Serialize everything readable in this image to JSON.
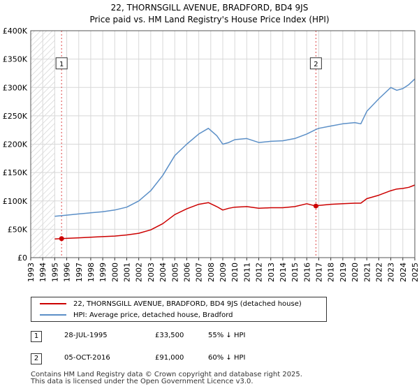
{
  "title": {
    "line1": "22, THORNSGILL AVENUE, BRADFORD, BD4 9JS",
    "line2": "Price paid vs. HM Land Registry's House Price Index (HPI)"
  },
  "colors": {
    "property": "#cc0000",
    "hpi": "#5b8fc7",
    "hatch": "#cccccc",
    "grid": "#d8d8d8",
    "marker_line": "#dd4444"
  },
  "chart_data": {
    "type": "line",
    "xlim": [
      1993,
      2025
    ],
    "ylim": [
      0,
      400000
    ],
    "y_ticks": [
      0,
      50000,
      100000,
      150000,
      200000,
      250000,
      300000,
      350000,
      400000
    ],
    "y_tick_labels": [
      "£0",
      "£50K",
      "£100K",
      "£150K",
      "£200K",
      "£250K",
      "£300K",
      "£350K",
      "£400K"
    ],
    "x_ticks": [
      1993,
      1994,
      1995,
      1996,
      1997,
      1998,
      1999,
      2000,
      2001,
      2002,
      2003,
      2004,
      2005,
      2006,
      2007,
      2008,
      2009,
      2010,
      2011,
      2012,
      2013,
      2014,
      2015,
      2016,
      2017,
      2018,
      2019,
      2020,
      2021,
      2022,
      2023,
      2024,
      2025
    ],
    "series": [
      {
        "name": "22, THORNSGILL AVENUE, BRADFORD, BD4 9JS (detached house)",
        "x": [
          1995.0,
          1995.57,
          1996,
          1997,
          1998,
          1999,
          2000,
          2001,
          2002,
          2003,
          2004,
          2005,
          2006,
          2007,
          2007.8,
          2008.5,
          2009,
          2009.5,
          2010,
          2011,
          2012,
          2013,
          2014,
          2015,
          2016,
          2016.76,
          2017,
          2018,
          2019,
          2020,
          2020.5,
          2021,
          2022,
          2023,
          2023.5,
          2024,
          2024.5,
          2025
        ],
        "y": [
          33000,
          33500,
          34000,
          35000,
          36000,
          37000,
          38000,
          40000,
          43000,
          49000,
          60000,
          76000,
          86000,
          94000,
          97000,
          90000,
          84000,
          87000,
          89000,
          90000,
          87000,
          88000,
          88000,
          90000,
          95000,
          91000,
          92000,
          94000,
          95000,
          96000,
          96000,
          104000,
          110000,
          118000,
          121000,
          122000,
          124000,
          128000
        ]
      },
      {
        "name": "HPI: Average price, detached house, Bradford",
        "x": [
          1995.0,
          1996,
          1997,
          1998,
          1999,
          2000,
          2001,
          2002,
          2003,
          2004,
          2005,
          2006,
          2007,
          2007.8,
          2008.5,
          2009,
          2009.5,
          2010,
          2011,
          2012,
          2013,
          2014,
          2015,
          2016,
          2016.76,
          2017,
          2018,
          2019,
          2020,
          2020.5,
          2021,
          2022,
          2023,
          2023.5,
          2024,
          2024.5,
          2025
        ],
        "y": [
          73000,
          75000,
          77000,
          79000,
          81000,
          84000,
          89000,
          100000,
          118000,
          145000,
          180000,
          200000,
          218000,
          228000,
          215000,
          200000,
          203000,
          208000,
          210000,
          203000,
          205000,
          206000,
          210000,
          218000,
          226000,
          228000,
          232000,
          236000,
          238000,
          236000,
          258000,
          280000,
          300000,
          295000,
          298000,
          305000,
          315000
        ]
      }
    ],
    "sales": [
      {
        "label": "1",
        "x": 1995.57,
        "y": 33500
      },
      {
        "label": "2",
        "x": 2016.76,
        "y": 91000
      }
    ],
    "hatch_until": 1995.0
  },
  "legend": {
    "property_label": "22, THORNSGILL AVENUE, BRADFORD, BD4 9JS (detached house)",
    "hpi_label": "HPI: Average price, detached house, Bradford"
  },
  "sales_table": [
    {
      "num": "1",
      "date": "28-JUL-1995",
      "price": "£33,500",
      "hpi": "55% ↓ HPI"
    },
    {
      "num": "2",
      "date": "05-OCT-2016",
      "price": "£91,000",
      "hpi": "60% ↓ HPI"
    }
  ],
  "footer": {
    "line1": "Contains HM Land Registry data © Crown copyright and database right 2025.",
    "line2": "This data is licensed under the Open Government Licence v3.0."
  }
}
